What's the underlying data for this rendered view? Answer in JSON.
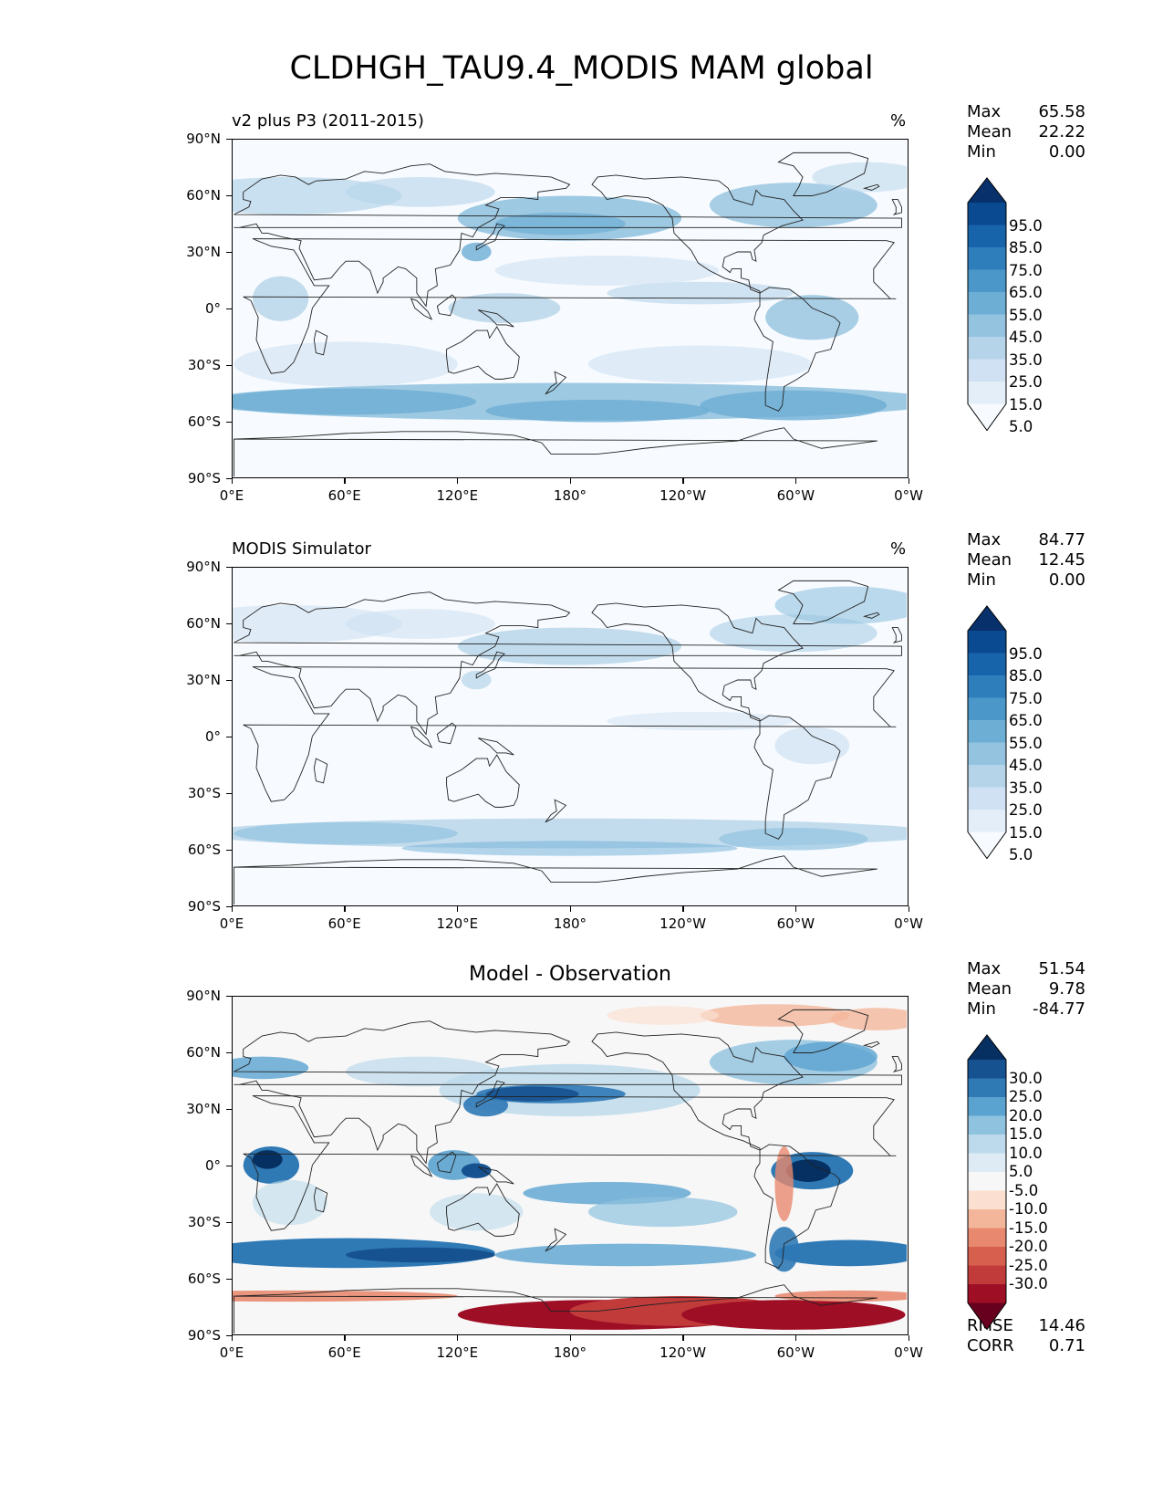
{
  "title": "CLDHGH_TAU9.4_MODIS MAM global",
  "lat_ticks": [
    "90°N",
    "60°N",
    "30°N",
    "0°",
    "30°S",
    "60°S",
    "90°S"
  ],
  "lon_ticks": [
    "0°E",
    "60°E",
    "120°E",
    "180°",
    "120°W",
    "60°W",
    "0°W"
  ],
  "panels": [
    {
      "title": "v2 plus P3 (2011-2015)",
      "units": "%",
      "stats": [
        {
          "label": "Max",
          "value": "65.58"
        },
        {
          "label": "Mean",
          "value": "22.22"
        },
        {
          "label": "Min",
          "value": "0.00"
        }
      ],
      "colorbar": {
        "labels": [
          "95.0",
          "85.0",
          "75.0",
          "65.0",
          "55.0",
          "45.0",
          "35.0",
          "25.0",
          "15.0",
          "5.0"
        ],
        "colors": [
          "#f7fbff",
          "#e3eef9",
          "#cfe1f2",
          "#b5d4e9",
          "#93c3df",
          "#6daed5",
          "#4b97c9",
          "#2f7ebc",
          "#1864aa",
          "#0a4a90",
          "#08306b"
        ]
      }
    },
    {
      "title": "MODIS Simulator",
      "units": "%",
      "stats": [
        {
          "label": "Max",
          "value": "84.77"
        },
        {
          "label": "Mean",
          "value": "12.45"
        },
        {
          "label": "Min",
          "value": "0.00"
        }
      ],
      "colorbar": {
        "labels": [
          "95.0",
          "85.0",
          "75.0",
          "65.0",
          "55.0",
          "45.0",
          "35.0",
          "25.0",
          "15.0",
          "5.0"
        ],
        "colors": [
          "#f7fbff",
          "#e3eef9",
          "#cfe1f2",
          "#b5d4e9",
          "#93c3df",
          "#6daed5",
          "#4b97c9",
          "#2f7ebc",
          "#1864aa",
          "#0a4a90",
          "#08306b"
        ]
      }
    },
    {
      "title": "Model - Observation",
      "units": "",
      "stats": [
        {
          "label": "Max",
          "value": "51.54"
        },
        {
          "label": "Mean",
          "value": "9.78"
        },
        {
          "label": "Min",
          "value": "-84.77"
        }
      ],
      "extra_stats": [
        {
          "label": "RMSE",
          "value": "14.46"
        },
        {
          "label": "CORR",
          "value": "0.71"
        }
      ],
      "colorbar": {
        "labels": [
          "30.0",
          "25.0",
          "20.0",
          "15.0",
          "10.0",
          "5.0",
          "-5.0",
          "-10.0",
          "-15.0",
          "-20.0",
          "-25.0",
          "-30.0"
        ],
        "colors": [
          "#67001f",
          "#9e0e25",
          "#c23b3b",
          "#d6604d",
          "#e8896f",
          "#f4b69b",
          "#fbe0d1",
          "#f7f7f7",
          "#deebf5",
          "#bcdaeb",
          "#8fc2de",
          "#5aa2cf",
          "#2f79b5",
          "#165190",
          "#053061"
        ]
      }
    }
  ]
}
